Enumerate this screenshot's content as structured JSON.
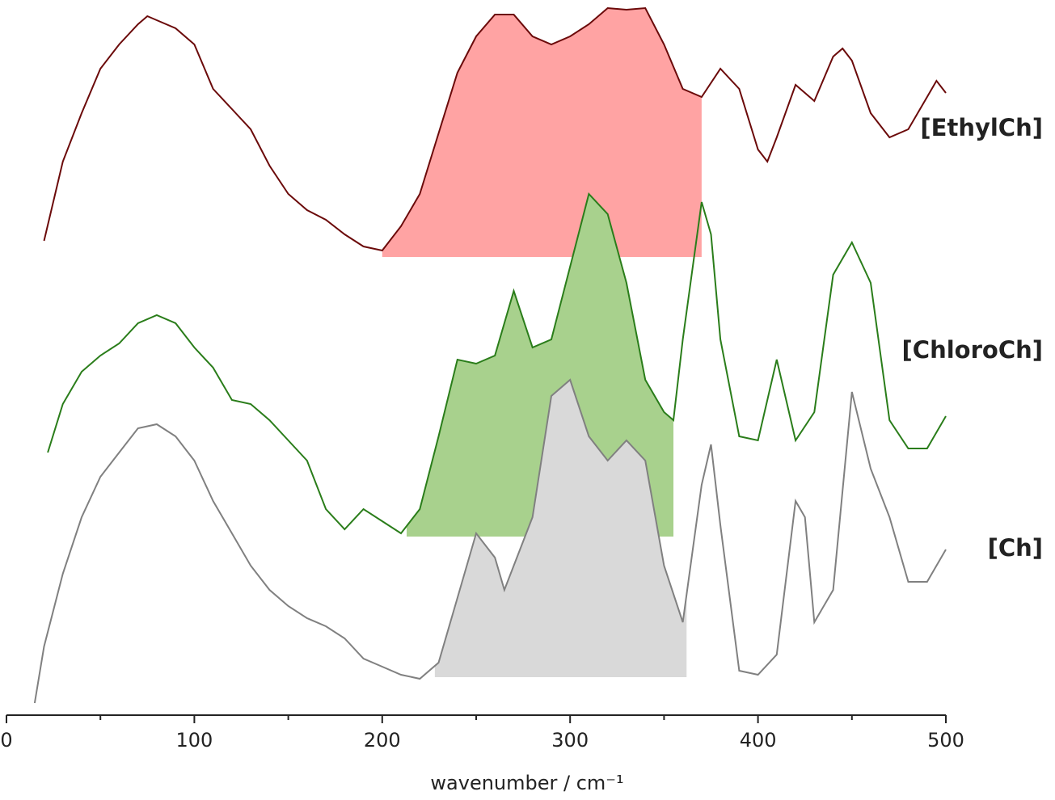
{
  "chart_data": {
    "type": "line",
    "xlabel": "wavenumber / cm⁻¹",
    "xlim": [
      0,
      500
    ],
    "xticks": [
      0,
      100,
      200,
      300,
      400,
      500
    ],
    "xminorticks": [
      50,
      150,
      250,
      350,
      450
    ],
    "ylim": [
      0,
      880
    ],
    "series": [
      {
        "name": "[EthylCh]",
        "color": "#6b0a0a",
        "fill_color": "#ffa3a3",
        "fill_range": [
          200,
          370
        ],
        "fill_base": 567,
        "x": [
          20,
          30,
          40,
          50,
          60,
          70,
          75,
          80,
          90,
          100,
          110,
          120,
          130,
          140,
          150,
          160,
          170,
          180,
          190,
          200,
          210,
          220,
          230,
          240,
          250,
          260,
          270,
          280,
          290,
          300,
          310,
          320,
          330,
          340,
          350,
          360,
          370,
          380,
          390,
          400,
          405,
          410,
          420,
          430,
          440,
          445,
          450,
          460,
          470,
          480,
          490,
          495,
          500
        ],
        "values": [
          587,
          685,
          745,
          800,
          830,
          855,
          865,
          860,
          850,
          830,
          775,
          750,
          725,
          680,
          645,
          625,
          613,
          595,
          580,
          575,
          605,
          645,
          720,
          795,
          840,
          867,
          867,
          840,
          830,
          840,
          855,
          875,
          873,
          875,
          830,
          775,
          765,
          800,
          775,
          700,
          685,
          715,
          780,
          760,
          815,
          825,
          810,
          745,
          715,
          725,
          765,
          785,
          770
        ]
      },
      {
        "name": "[ChloroCh]",
        "color": "#2a7d1a",
        "fill_color": "#a8d18d",
        "fill_range": [
          213,
          355
        ],
        "fill_base": 221,
        "x": [
          22,
          30,
          40,
          50,
          60,
          70,
          80,
          90,
          100,
          110,
          120,
          130,
          140,
          150,
          160,
          170,
          180,
          190,
          200,
          210,
          220,
          230,
          240,
          250,
          260,
          270,
          280,
          290,
          300,
          310,
          320,
          330,
          340,
          350,
          355,
          360,
          370,
          375,
          380,
          390,
          400,
          410,
          420,
          430,
          440,
          450,
          460,
          470,
          480,
          490,
          500
        ],
        "values": [
          325,
          385,
          425,
          445,
          460,
          485,
          495,
          485,
          455,
          430,
          390,
          385,
          365,
          340,
          315,
          255,
          230,
          255,
          240,
          225,
          255,
          345,
          440,
          435,
          445,
          525,
          455,
          465,
          555,
          645,
          620,
          535,
          415,
          375,
          365,
          465,
          635,
          595,
          465,
          345,
          340,
          440,
          340,
          375,
          545,
          585,
          535,
          365,
          330,
          330,
          370
        ]
      },
      {
        "name": "[Ch]",
        "color": "#808080",
        "fill_color": "#d9d9d9",
        "fill_range": [
          228,
          362
        ],
        "fill_base": 47,
        "x": [
          15,
          20,
          30,
          40,
          50,
          60,
          70,
          80,
          90,
          100,
          110,
          120,
          130,
          140,
          150,
          160,
          170,
          180,
          190,
          200,
          210,
          220,
          230,
          240,
          250,
          260,
          265,
          270,
          280,
          290,
          300,
          310,
          320,
          330,
          340,
          350,
          360,
          370,
          375,
          380,
          390,
          400,
          410,
          420,
          425,
          430,
          440,
          450,
          460,
          470,
          480,
          490,
          500
        ],
        "values": [
          15,
          85,
          175,
          245,
          295,
          325,
          355,
          360,
          345,
          315,
          265,
          225,
          185,
          155,
          135,
          120,
          110,
          95,
          70,
          60,
          50,
          45,
          65,
          145,
          225,
          195,
          155,
          185,
          245,
          395,
          415,
          345,
          315,
          340,
          315,
          185,
          115,
          285,
          335,
          235,
          55,
          50,
          75,
          265,
          245,
          115,
          155,
          400,
          305,
          245,
          165,
          165,
          205
        ]
      }
    ]
  }
}
